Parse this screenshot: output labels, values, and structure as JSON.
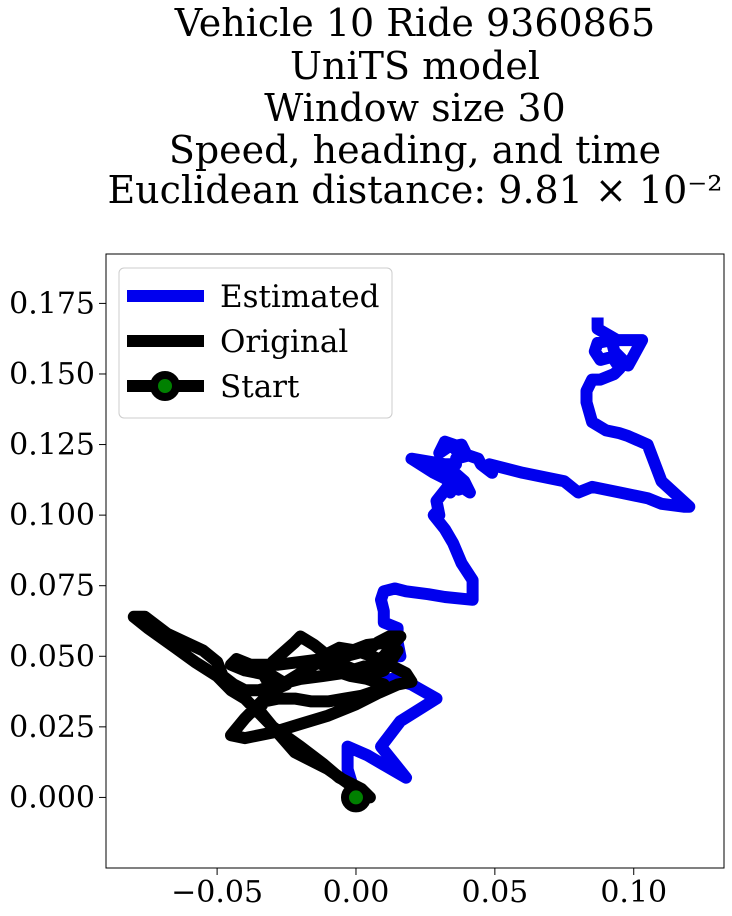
{
  "chart_data": {
    "type": "line",
    "title_lines": [
      "Vehicle 10 Ride 9360865",
      "UniTS model",
      "Window size 30",
      "Speed, heading, and time",
      "Euclidean distance: 9.81 × 10⁻²"
    ],
    "xlabel": "",
    "ylabel": "",
    "xlim": [
      -0.09,
      0.1325
    ],
    "ylim": [
      -0.025,
      0.1925
    ],
    "xticks": [
      -0.05,
      0.0,
      0.05,
      0.1
    ],
    "xtick_labels": [
      "−0.05",
      "0.00",
      "0.05",
      "0.10"
    ],
    "yticks": [
      0.0,
      0.025,
      0.05,
      0.075,
      0.1,
      0.125,
      0.15,
      0.175
    ],
    "ytick_labels": [
      "0.000",
      "0.025",
      "0.050",
      "0.075",
      "0.100",
      "0.125",
      "0.150",
      "0.175"
    ],
    "grid": false,
    "legend_position": "upper-left",
    "legend": [
      "Estimated",
      "Original",
      "Start"
    ],
    "colors": {
      "estimated": "#0000ee",
      "original": "#000000",
      "start_marker": "#008000"
    },
    "series": [
      {
        "name": "Estimated",
        "x": [
          0.0,
          -0.003,
          -0.003,
          0.004,
          0.018,
          0.009,
          0.016,
          0.029,
          0.02,
          0.013,
          0.012,
          0.009,
          0.011,
          0.016,
          0.015,
          0.015,
          0.01,
          0.01,
          0.009,
          0.01,
          0.014,
          0.018,
          0.026,
          0.032,
          0.042,
          0.042,
          0.038,
          0.035,
          0.032,
          0.028,
          0.029,
          0.03,
          0.029,
          0.033,
          0.034,
          0.033,
          0.037,
          0.038,
          0.041,
          0.039,
          0.032,
          0.02,
          0.028,
          0.032,
          0.032,
          0.036,
          0.036,
          0.04,
          0.038,
          0.033,
          0.03,
          0.032,
          0.035,
          0.038,
          0.036,
          0.038,
          0.044,
          0.045,
          0.049,
          0.048,
          0.06,
          0.075,
          0.08,
          0.085,
          0.095,
          0.105,
          0.11,
          0.118,
          0.12,
          0.11,
          0.105,
          0.098,
          0.095,
          0.09,
          0.085,
          0.083,
          0.083,
          0.085,
          0.088,
          0.093,
          0.095,
          0.093,
          0.092,
          0.088,
          0.086,
          0.087,
          0.092,
          0.093,
          0.098,
          0.103,
          0.094,
          0.087,
          0.087
        ],
        "y": [
          0.0,
          0.01,
          0.018,
          0.015,
          0.007,
          0.018,
          0.027,
          0.035,
          0.04,
          0.042,
          0.04,
          0.045,
          0.05,
          0.05,
          0.055,
          0.06,
          0.062,
          0.066,
          0.07,
          0.073,
          0.074,
          0.073,
          0.072,
          0.071,
          0.07,
          0.077,
          0.083,
          0.09,
          0.095,
          0.1,
          0.101,
          0.1,
          0.105,
          0.11,
          0.108,
          0.112,
          0.109,
          0.11,
          0.108,
          0.112,
          0.118,
          0.12,
          0.115,
          0.113,
          0.118,
          0.118,
          0.12,
          0.121,
          0.125,
          0.124,
          0.122,
          0.126,
          0.125,
          0.124,
          0.123,
          0.122,
          0.12,
          0.118,
          0.115,
          0.118,
          0.115,
          0.112,
          0.108,
          0.11,
          0.108,
          0.106,
          0.104,
          0.103,
          0.103,
          0.112,
          0.125,
          0.128,
          0.129,
          0.13,
          0.133,
          0.14,
          0.144,
          0.148,
          0.148,
          0.15,
          0.152,
          0.155,
          0.156,
          0.155,
          0.158,
          0.161,
          0.162,
          0.158,
          0.153,
          0.162,
          0.162,
          0.166,
          0.17
        ]
      },
      {
        "name": "Original",
        "x": [
          0.005,
          0.0,
          -0.01,
          -0.022,
          -0.03,
          -0.04,
          -0.045,
          -0.05,
          -0.058,
          -0.065,
          -0.075,
          -0.08,
          -0.076,
          -0.068,
          -0.055,
          -0.05,
          -0.048,
          -0.044,
          -0.04,
          -0.035,
          -0.028,
          -0.02,
          -0.012,
          -0.005,
          0.005,
          0.01,
          0.014,
          0.016,
          0.012,
          0.008,
          0.004,
          -0.004,
          -0.012,
          -0.02,
          -0.028,
          -0.038,
          -0.043,
          -0.045,
          -0.04,
          -0.03,
          -0.025,
          -0.03,
          -0.033,
          -0.03,
          -0.022,
          -0.02,
          -0.015,
          -0.01,
          -0.005,
          0.0,
          0.005,
          0.01,
          0.013,
          0.015,
          0.012,
          0.004,
          -0.004,
          -0.01,
          -0.015,
          -0.02,
          -0.03,
          -0.04,
          -0.045,
          -0.04,
          -0.03,
          -0.02,
          -0.01,
          0.0,
          0.008,
          0.015,
          0.02,
          0.018,
          0.012,
          0.006,
          0.0,
          -0.006,
          -0.01,
          -0.012,
          -0.008,
          -0.002,
          0.004,
          0.01,
          0.008,
          0.002,
          -0.004,
          -0.01,
          -0.016,
          -0.022,
          -0.028,
          -0.033,
          -0.035,
          -0.03,
          -0.02,
          -0.012,
          -0.006,
          0.002,
          0.005,
          0.0
        ],
        "y": [
          -0.002,
          0.003,
          0.01,
          0.016,
          0.025,
          0.035,
          0.038,
          0.043,
          0.048,
          0.053,
          0.06,
          0.064,
          0.064,
          0.058,
          0.052,
          0.048,
          0.043,
          0.04,
          0.038,
          0.038,
          0.04,
          0.042,
          0.043,
          0.044,
          0.047,
          0.05,
          0.055,
          0.057,
          0.057,
          0.055,
          0.052,
          0.05,
          0.049,
          0.048,
          0.047,
          0.047,
          0.049,
          0.047,
          0.045,
          0.043,
          0.04,
          0.038,
          0.043,
          0.048,
          0.055,
          0.057,
          0.054,
          0.05,
          0.047,
          0.045,
          0.043,
          0.045,
          0.049,
          0.052,
          0.055,
          0.054,
          0.051,
          0.049,
          0.047,
          0.044,
          0.038,
          0.028,
          0.022,
          0.021,
          0.023,
          0.026,
          0.029,
          0.033,
          0.037,
          0.04,
          0.041,
          0.044,
          0.047,
          0.05,
          0.052,
          0.053,
          0.051,
          0.047,
          0.045,
          0.043,
          0.042,
          0.04,
          0.038,
          0.036,
          0.035,
          0.034,
          0.034,
          0.035,
          0.035,
          0.034,
          0.031,
          0.025,
          0.018,
          0.012,
          0.007,
          0.003,
          0.0,
          0.0
        ]
      }
    ],
    "start": {
      "name": "Start",
      "x": 0.0,
      "y": 0.0
    }
  }
}
